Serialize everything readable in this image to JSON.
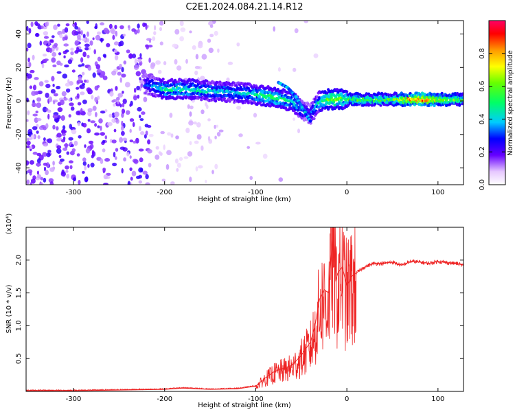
{
  "title": "C2E1.2024.084.21.14.R12",
  "chart_data": [
    {
      "type": "heatmap",
      "xlabel": "Height of straight line (km)",
      "ylabel": "Frequency (Hz)",
      "xlim": [
        -352,
        128
      ],
      "ylim": [
        -50,
        48
      ],
      "xticks": [
        -300,
        -200,
        -100,
        0,
        100
      ],
      "yticks": [
        -40,
        -20,
        0,
        20,
        40
      ],
      "colorbar": {
        "label": "Normalized spectral amplitude",
        "range": [
          0.0,
          1.0
        ],
        "ticks": [
          0.0,
          0.2,
          0.4,
          0.6,
          0.8
        ]
      },
      "ridge": {
        "x": [
          -220,
          -200,
          -170,
          -150,
          -120,
          -100,
          -80,
          -60,
          -50,
          -40,
          -30,
          -20,
          0,
          20,
          50,
          80,
          100,
          128
        ],
        "y": [
          10,
          7,
          7,
          6,
          5,
          4,
          2,
          0,
          -5,
          -8,
          0,
          1,
          1,
          1,
          1,
          1,
          1,
          1
        ],
        "amplitude": [
          0.3,
          0.45,
          0.45,
          0.4,
          0.4,
          0.45,
          0.5,
          0.45,
          0.35,
          0.3,
          0.45,
          0.6,
          0.55,
          0.55,
          0.55,
          0.9,
          0.7,
          0.55
        ]
      },
      "branch": {
        "x": [
          -75,
          -65,
          -55,
          -45,
          -40
        ],
        "y": [
          11,
          8,
          2,
          -8,
          -12
        ]
      }
    },
    {
      "type": "line",
      "xlabel": "Height of straight line (km)",
      "ylabel": "SNR (10 * v/v)",
      "scale_label": "(x10⁴)",
      "xlim": [
        -352,
        128
      ],
      "ylim": [
        0,
        2.5
      ],
      "xticks": [
        -300,
        -200,
        -100,
        0,
        100
      ],
      "yticks": [
        0.5,
        1.0,
        1.5,
        2.0
      ],
      "ytick_labels": [
        "0.5",
        "1.0",
        "1.5",
        "2.0"
      ],
      "color": "#ee2222",
      "series": [
        {
          "x": [
            -352,
            -300,
            -250,
            -200,
            -180,
            -150,
            -120,
            -100,
            -90,
            -80,
            -70,
            -60,
            -50,
            -45,
            -40,
            -35,
            -30,
            -25,
            -20,
            -15,
            -12,
            -10,
            -5,
            0,
            5,
            10,
            15,
            20,
            30,
            40,
            50,
            60,
            70,
            80,
            90,
            100,
            110,
            120,
            128
          ],
          "values": [
            0.01,
            0.01,
            0.02,
            0.03,
            0.05,
            0.03,
            0.04,
            0.08,
            0.2,
            0.3,
            0.35,
            0.4,
            0.55,
            0.65,
            0.75,
            1.0,
            1.4,
            1.55,
            1.5,
            2.5,
            1.7,
            1.8,
            1.9,
            1.6,
            1.75,
            1.8,
            1.85,
            1.9,
            1.95,
            1.95,
            1.97,
            1.92,
            1.98,
            1.97,
            1.95,
            1.98,
            1.96,
            1.95,
            1.92
          ]
        }
      ]
    }
  ]
}
